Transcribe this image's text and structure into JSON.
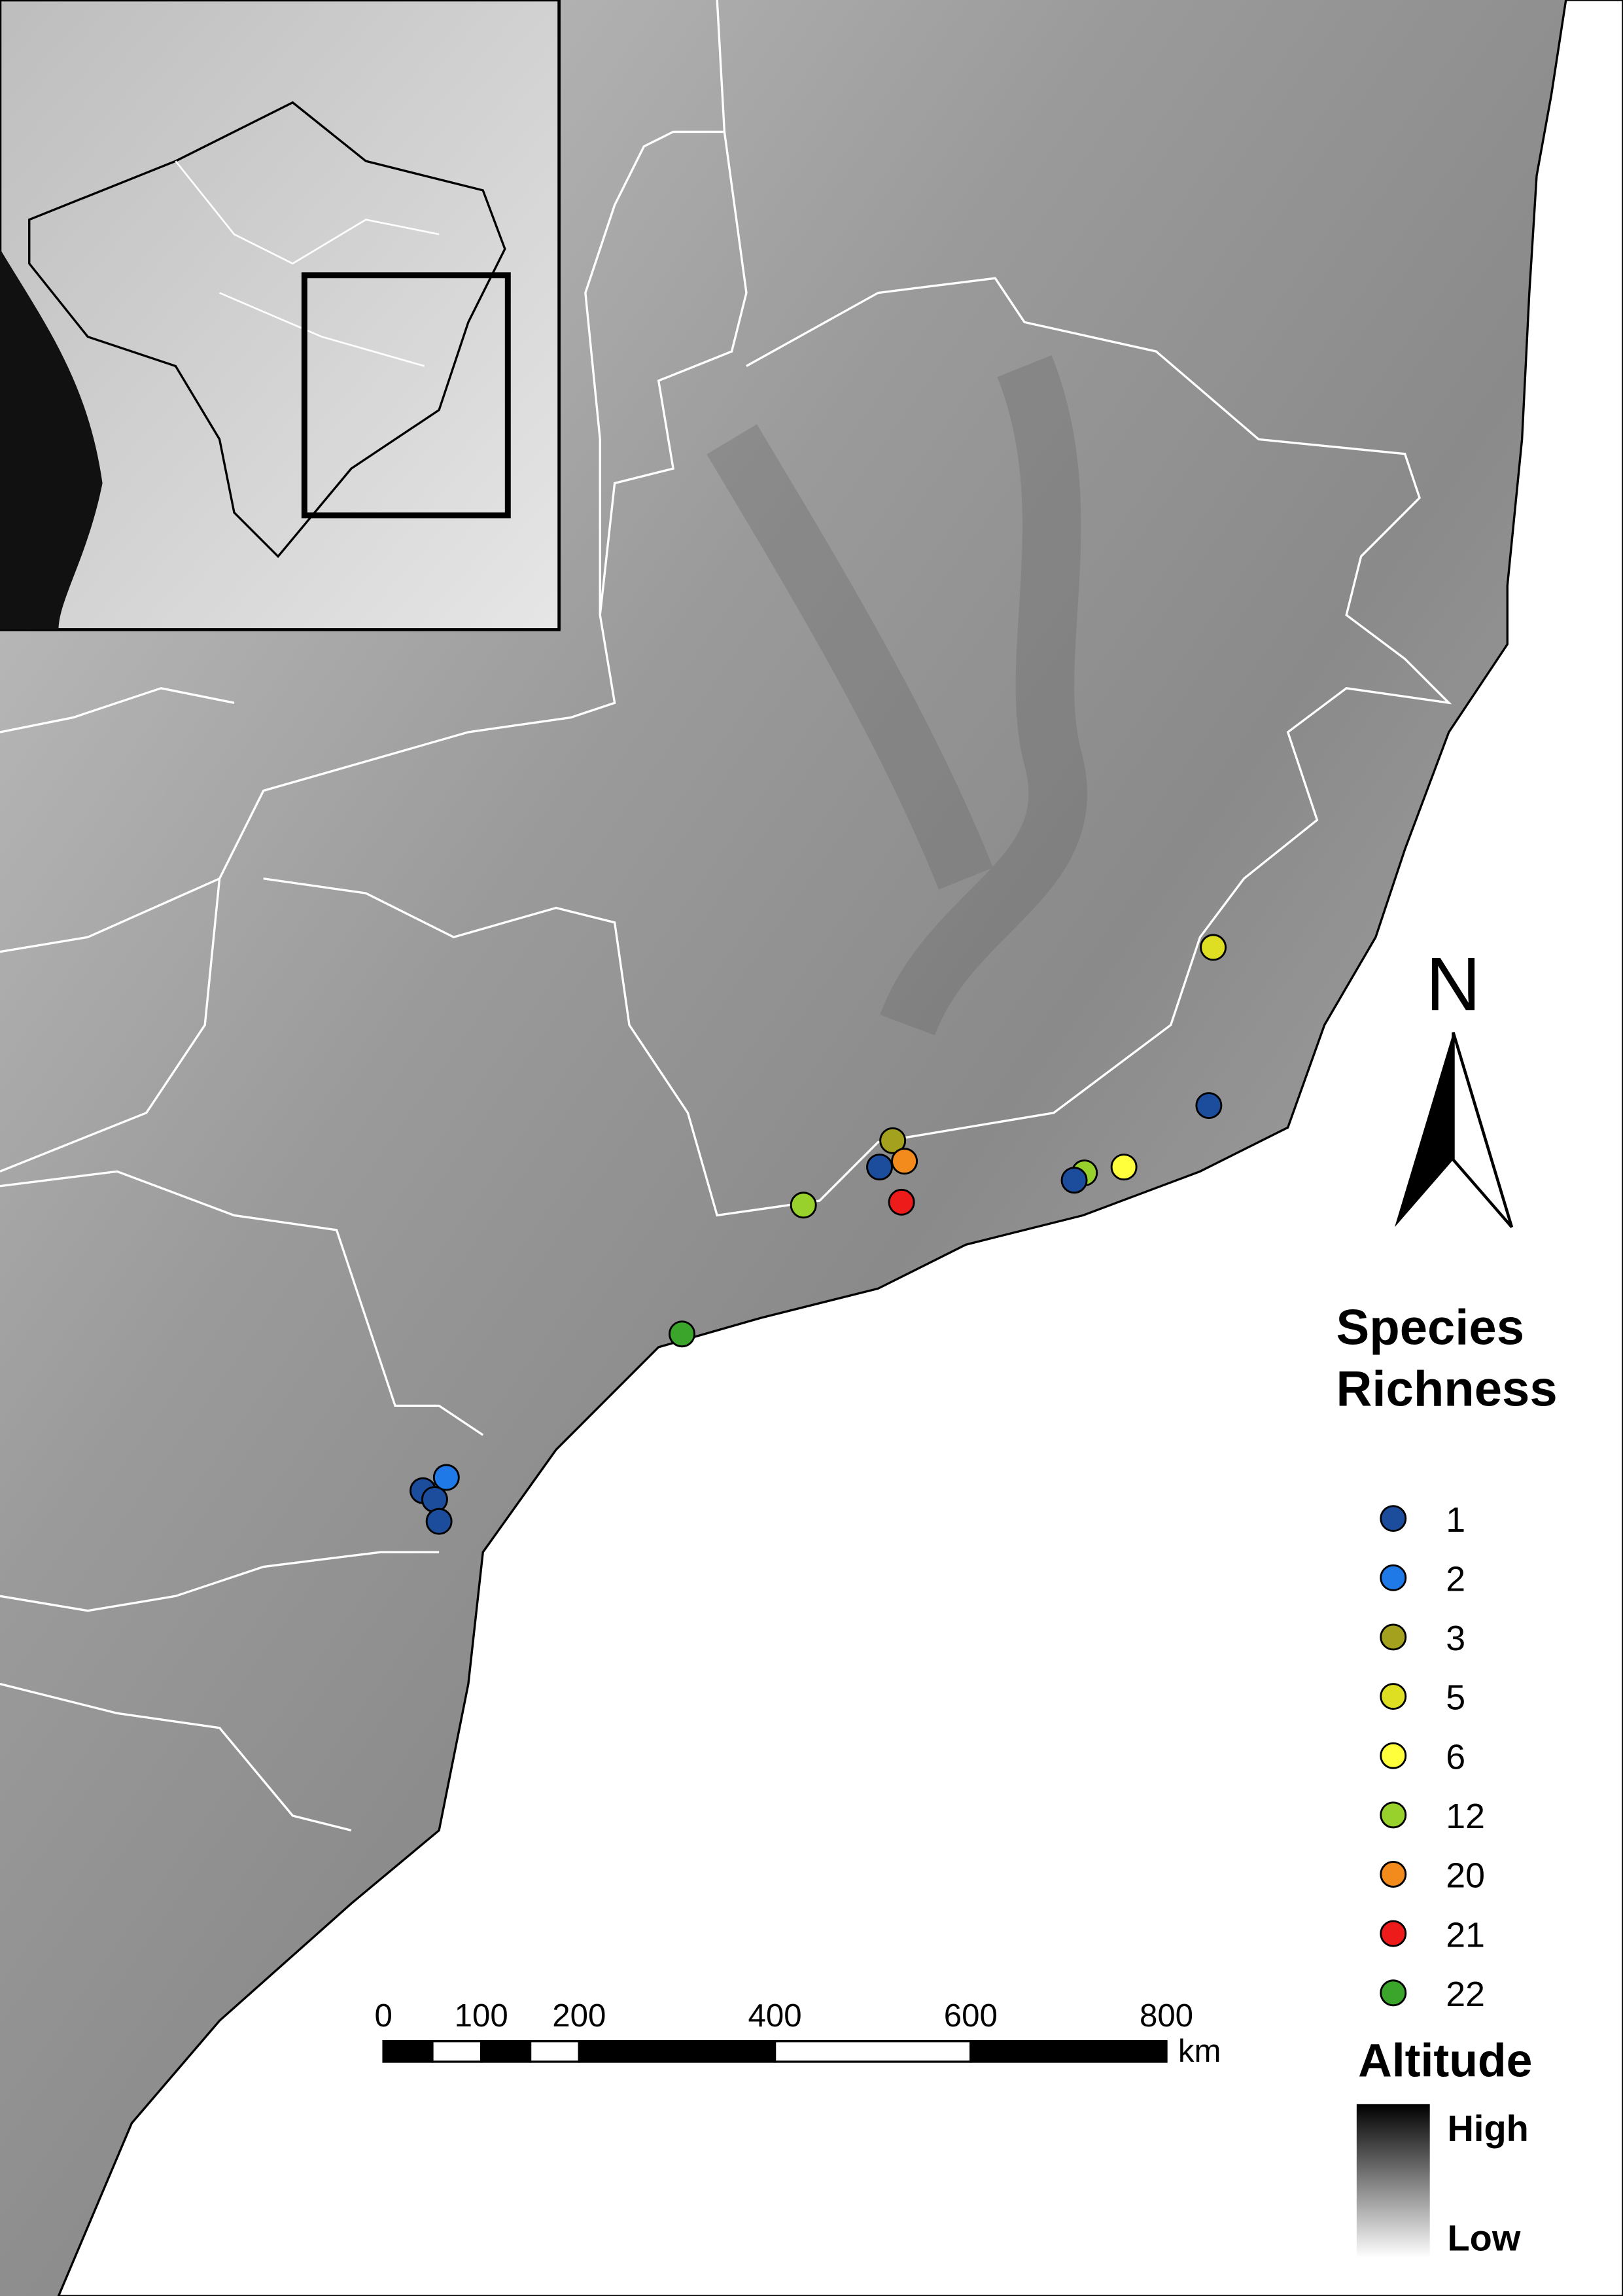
{
  "map": {
    "north_label": "N",
    "species_richness": {
      "title_lines": [
        "Species",
        "Richness"
      ],
      "classes": [
        {
          "value": 1,
          "color": "#1c4c9c"
        },
        {
          "value": 2,
          "color": "#1f7ae8"
        },
        {
          "value": 3,
          "color": "#a3a11e"
        },
        {
          "value": 5,
          "color": "#dede22"
        },
        {
          "value": 6,
          "color": "#ffff3c"
        },
        {
          "value": 12,
          "color": "#98d02c"
        },
        {
          "value": 20,
          "color": "#f28a1c"
        },
        {
          "value": 21,
          "color": "#ee1b1b"
        },
        {
          "value": 22,
          "color": "#3ba52b"
        }
      ]
    },
    "altitude": {
      "title": "Altitude",
      "high": "High",
      "low": "Low"
    },
    "scale_bar": {
      "unit": "km",
      "lim": [
        0,
        800
      ],
      "ticks": [
        0,
        100,
        200,
        400,
        600,
        800
      ]
    }
  }
}
